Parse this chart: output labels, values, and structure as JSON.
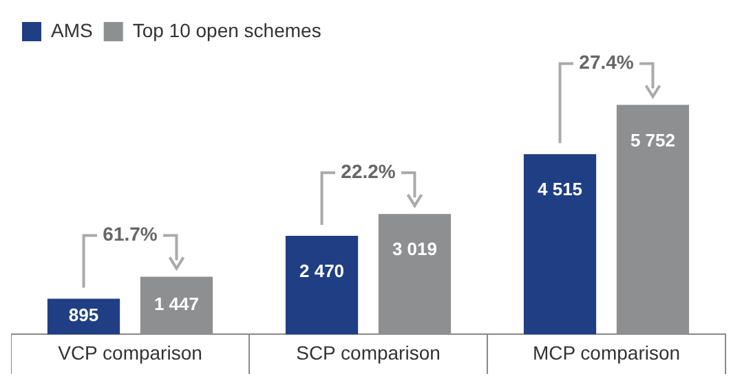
{
  "chart_data": {
    "type": "bar",
    "categories": [
      "VCP comparison",
      "SCP comparison",
      "MCP comparison"
    ],
    "series": [
      {
        "name": "AMS",
        "color": "#1f3e84",
        "values": [
          895,
          2470,
          4515
        ],
        "value_labels": [
          "895",
          "2 470",
          "4 515"
        ]
      },
      {
        "name": "Top 10 open schemes",
        "color": "#8e8f91",
        "values": [
          1447,
          3019,
          5752
        ],
        "value_labels": [
          "1 447",
          "3 019",
          "5 752"
        ]
      }
    ],
    "annotations": [
      "61.7%",
      "22.2%",
      "27.4%"
    ],
    "legend": "top left",
    "grid": false
  }
}
